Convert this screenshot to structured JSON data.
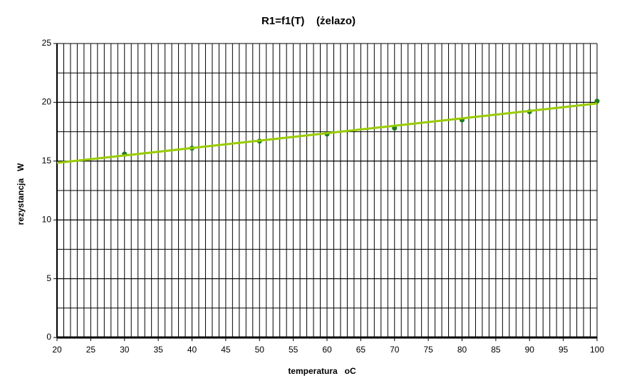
{
  "chart_data": {
    "type": "scatter",
    "title": "R1=f1(T)    (żelazo)",
    "x_label": "temperatura   oC",
    "y_label": "rezystancja   W",
    "series": [
      {
        "x": [
          30,
          40,
          50,
          60,
          70,
          80,
          90,
          100
        ],
        "values": [
          15.6,
          16.1,
          16.7,
          17.3,
          17.8,
          18.5,
          19.2,
          20.1
        ],
        "color": "#1e7a1e"
      }
    ],
    "trendline": {
      "x": [
        20,
        100
      ],
      "values": [
        14.85,
        19.9
      ],
      "color": "#99cc00"
    },
    "xlim": [
      20,
      100
    ],
    "xticks": [
      20,
      25,
      30,
      35,
      40,
      45,
      50,
      55,
      60,
      65,
      70,
      75,
      80,
      85,
      90,
      95,
      100
    ],
    "ylim": [
      0,
      25
    ],
    "yticks": [
      0,
      5,
      10,
      15,
      20,
      25
    ],
    "grid": true,
    "x_minor_grid_step": 1,
    "y_minor_grid_step": 2.5
  }
}
